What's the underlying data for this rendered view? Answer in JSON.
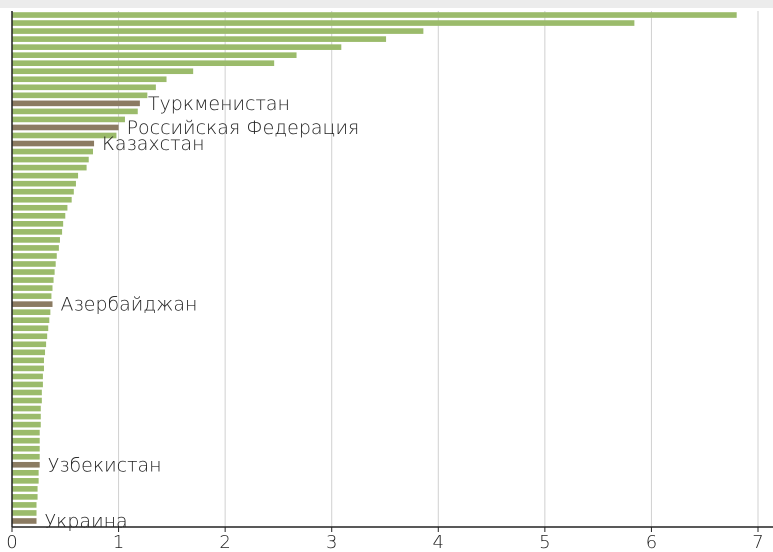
{
  "chart_data": {
    "type": "hbar",
    "categories": [
      null,
      null,
      null,
      null,
      null,
      null,
      null,
      null,
      null,
      null,
      null,
      "Туркменистан",
      null,
      null,
      "Российская Федерация",
      null,
      "Казахстан",
      null,
      null,
      null,
      null,
      null,
      null,
      null,
      null,
      null,
      null,
      null,
      null,
      null,
      null,
      null,
      null,
      null,
      null,
      null,
      "Азербайджан",
      null,
      null,
      null,
      null,
      null,
      null,
      null,
      null,
      null,
      null,
      null,
      null,
      null,
      null,
      null,
      null,
      null,
      null,
      null,
      "Узбекистан",
      null,
      null,
      null,
      null,
      null,
      null,
      "Украина"
    ],
    "values": [
      6.8,
      5.84,
      3.86,
      3.51,
      3.09,
      2.67,
      2.46,
      1.7,
      1.45,
      1.35,
      1.27,
      1.2,
      1.18,
      1.06,
      1.0,
      0.98,
      0.77,
      0.76,
      0.72,
      0.7,
      0.62,
      0.6,
      0.58,
      0.56,
      0.52,
      0.5,
      0.48,
      0.47,
      0.45,
      0.44,
      0.42,
      0.41,
      0.4,
      0.39,
      0.38,
      0.37,
      0.38,
      0.36,
      0.35,
      0.34,
      0.33,
      0.32,
      0.31,
      0.3,
      0.3,
      0.29,
      0.29,
      0.28,
      0.28,
      0.27,
      0.27,
      0.27,
      0.26,
      0.26,
      0.26,
      0.26,
      0.26,
      0.25,
      0.25,
      0.24,
      0.24,
      0.23,
      0.23,
      0.23
    ],
    "color": "#9bbb6b",
    "highlight_color": "#8b7b62",
    "xlim": [
      0,
      7
    ],
    "xticks": [
      0,
      1,
      2,
      3,
      4,
      5,
      6,
      7
    ],
    "grid": true
  }
}
